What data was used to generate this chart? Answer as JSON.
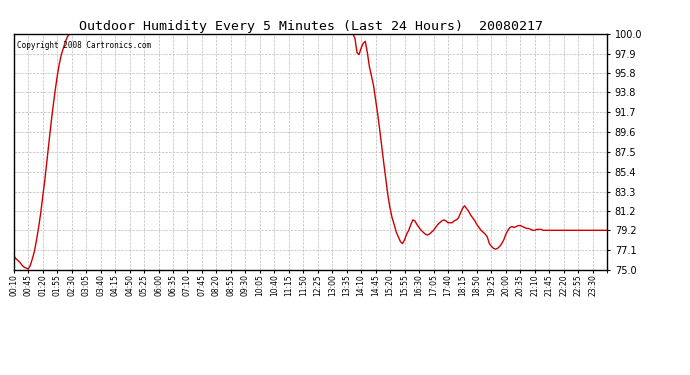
{
  "title": "Outdoor Humidity Every 5 Minutes (Last 24 Hours)  20080217",
  "copyright": "Copyright 2008 Cartronics.com",
  "line_color": "#cc0000",
  "bg_color": "#ffffff",
  "grid_color": "#bbbbbb",
  "ylim": [
    75.0,
    100.0
  ],
  "yticks": [
    75.0,
    77.1,
    79.2,
    81.2,
    83.3,
    85.4,
    87.5,
    89.6,
    91.7,
    93.8,
    95.8,
    97.9,
    100.0
  ],
  "xtick_labels": [
    "00:10",
    "00:45",
    "01:20",
    "01:55",
    "02:30",
    "03:05",
    "03:40",
    "04:15",
    "04:50",
    "05:25",
    "06:00",
    "06:35",
    "07:10",
    "07:45",
    "08:20",
    "08:55",
    "09:30",
    "10:05",
    "10:40",
    "11:15",
    "11:50",
    "12:25",
    "13:00",
    "13:35",
    "14:10",
    "14:45",
    "15:20",
    "15:55",
    "16:30",
    "17:05",
    "17:40",
    "18:15",
    "18:50",
    "19:25",
    "20:00",
    "20:35",
    "21:10",
    "21:45",
    "22:20",
    "22:55",
    "23:30"
  ],
  "humidity_values": [
    76.5,
    76.2,
    76.0,
    75.8,
    75.5,
    75.3,
    75.2,
    75.1,
    75.5,
    76.2,
    77.0,
    78.2,
    79.5,
    81.0,
    82.8,
    84.5,
    86.5,
    88.5,
    90.5,
    92.3,
    94.0,
    95.5,
    96.8,
    97.8,
    98.5,
    99.2,
    99.7,
    100.0,
    100.0,
    100.0,
    100.0,
    100.0,
    100.0,
    100.0,
    100.0,
    100.0,
    100.0,
    100.0,
    100.0,
    100.0,
    100.0,
    100.0,
    100.0,
    100.0,
    100.0,
    100.0,
    100.0,
    100.0,
    100.0,
    100.0,
    100.0,
    100.0,
    100.0,
    100.0,
    100.0,
    100.0,
    100.0,
    100.0,
    100.0,
    100.0,
    100.0,
    100.0,
    100.0,
    100.0,
    100.0,
    100.0,
    100.0,
    100.0,
    100.0,
    100.0,
    100.0,
    100.0,
    100.0,
    100.0,
    100.0,
    100.0,
    100.0,
    100.0,
    100.0,
    100.0,
    100.0,
    100.0,
    100.0,
    100.0,
    100.0,
    100.0,
    100.0,
    100.0,
    100.0,
    100.0,
    100.0,
    100.0,
    100.0,
    100.0,
    100.0,
    100.0,
    100.0,
    100.0,
    100.0,
    100.0,
    100.0,
    100.0,
    100.0,
    100.0,
    100.0,
    100.0,
    100.0,
    100.0,
    100.0,
    100.0,
    100.0,
    100.0,
    100.0,
    100.0,
    100.0,
    100.0,
    100.0,
    100.0,
    100.0,
    100.0,
    100.0,
    100.0,
    100.0,
    100.0,
    100.0,
    100.0,
    100.0,
    100.0,
    100.0,
    100.0,
    100.0,
    100.0,
    100.0,
    100.0,
    100.0,
    100.0,
    100.0,
    100.0,
    100.0,
    100.0,
    100.0,
    100.0,
    100.0,
    100.0,
    100.0,
    100.0,
    100.0,
    100.0,
    100.0,
    100.0,
    100.0,
    100.0,
    100.0,
    100.0,
    100.0,
    100.0,
    100.0,
    100.0,
    100.0,
    100.0,
    100.0,
    100.0,
    100.0,
    100.0,
    100.0,
    99.5,
    98.0,
    97.8,
    98.5,
    99.0,
    99.2,
    98.0,
    96.5,
    95.5,
    94.5,
    93.0,
    91.5,
    89.8,
    88.0,
    86.2,
    84.5,
    82.8,
    81.5,
    80.5,
    79.8,
    79.0,
    78.5,
    78.0,
    77.8,
    78.2,
    78.8,
    79.2,
    79.8,
    80.3,
    80.2,
    79.8,
    79.5,
    79.2,
    79.0,
    78.8,
    78.7,
    78.8,
    79.0,
    79.2,
    79.5,
    79.8,
    80.0,
    80.2,
    80.3,
    80.2,
    80.0,
    80.0,
    80.0,
    80.2,
    80.3,
    80.5,
    81.0,
    81.5,
    81.8,
    81.5,
    81.2,
    80.8,
    80.5,
    80.2,
    79.8,
    79.5,
    79.2,
    79.0,
    78.8,
    78.5,
    77.8,
    77.5,
    77.3,
    77.2,
    77.3,
    77.5,
    77.8,
    78.2,
    78.8,
    79.2,
    79.5,
    79.6,
    79.5,
    79.6,
    79.7,
    79.7,
    79.6,
    79.5,
    79.4,
    79.4,
    79.3,
    79.2,
    79.2,
    79.3,
    79.3,
    79.3,
    79.2,
    79.2,
    79.2,
    79.2,
    79.2,
    79.2,
    79.2,
    79.2,
    79.2,
    79.2,
    79.2,
    79.2,
    79.2,
    79.2,
    79.2,
    79.2,
    79.2,
    79.2,
    79.2,
    79.2,
    79.2,
    79.2,
    79.2,
    79.2,
    79.2,
    79.2,
    79.2,
    79.2,
    79.2,
    79.2,
    79.2,
    79.2
  ],
  "n_xticks": 41,
  "label_step": 7
}
